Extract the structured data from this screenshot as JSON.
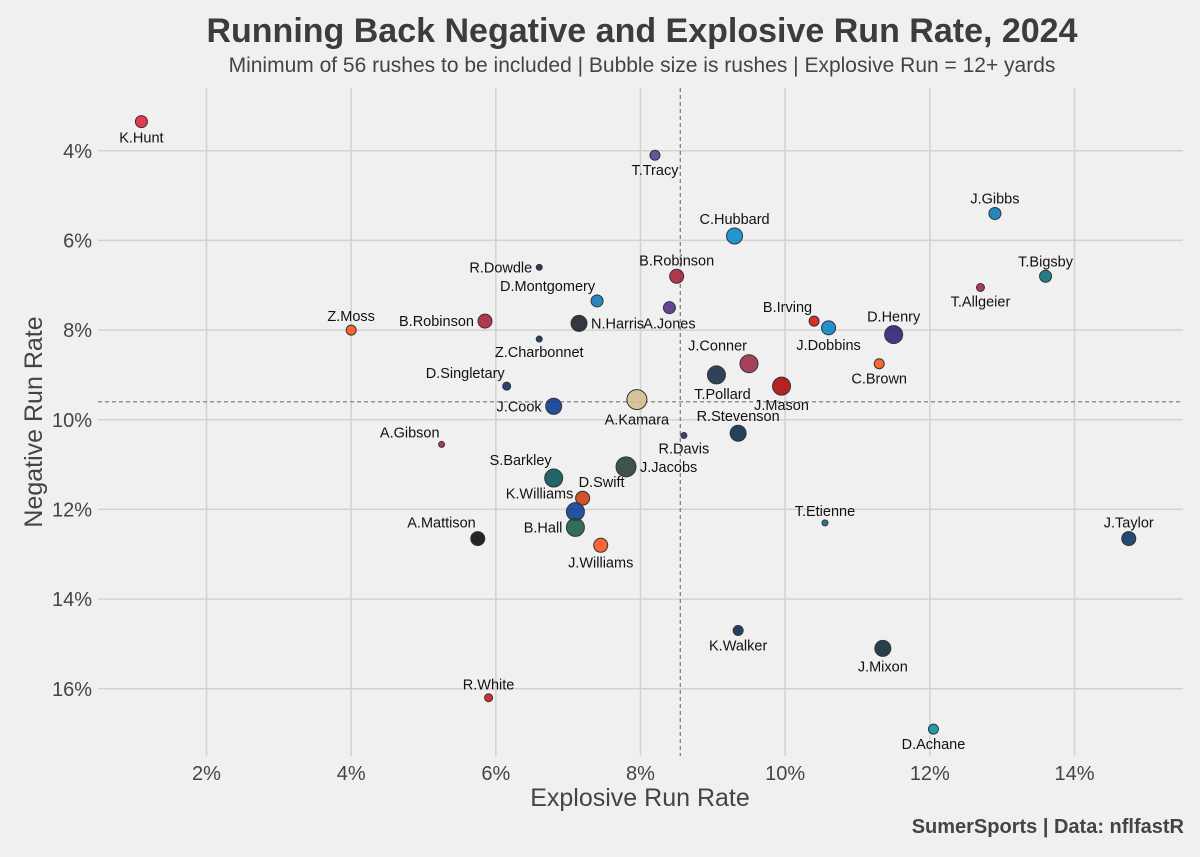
{
  "header": {
    "title": "Running Back Negative and Explosive Run Rate, 2024",
    "subtitle": "Minimum of 56 rushes to be included | Bubble size is rushes | Explosive Run = 12+ yards"
  },
  "footer": {
    "credit": "SumerSports | Data: nflfastR"
  },
  "chart_data": {
    "type": "scatter",
    "title": "Running Back Negative and Explosive Run Rate, 2024",
    "subtitle": "Minimum of 56 rushes to be included | Bubble size is rushes | Explosive Run = 12+ yards",
    "xlabel": "Explosive Run Rate",
    "ylabel": "Negative Run Rate",
    "xlim": [
      0.5,
      15.5
    ],
    "ylim": [
      17.5,
      2.6
    ],
    "y_inverted": true,
    "x_unit": "%",
    "y_unit": "%",
    "xticks": [
      2,
      4,
      6,
      8,
      10,
      12,
      14
    ],
    "yticks": [
      4,
      6,
      8,
      10,
      12,
      14,
      16
    ],
    "xtick_labels": [
      "2%",
      "4%",
      "6%",
      "8%",
      "10%",
      "12%",
      "14%"
    ],
    "ytick_labels": [
      "4%",
      "6%",
      "8%",
      "10%",
      "12%",
      "14%",
      "16%"
    ],
    "grid": true,
    "reference_lines": {
      "x": 8.55,
      "y": 9.6
    },
    "bubble_size": "rushes",
    "points": [
      {
        "name": "K.Hunt",
        "x": 1.1,
        "y": 3.35,
        "size": 4,
        "color": "#e31837",
        "lab": "below"
      },
      {
        "name": "T.Tracy",
        "x": 8.2,
        "y": 4.1,
        "size": 3,
        "color": "#4b3b8c",
        "lab": "below"
      },
      {
        "name": "J.Gibbs",
        "x": 12.9,
        "y": 5.4,
        "size": 4,
        "color": "#0076b6",
        "lab": "above"
      },
      {
        "name": "C.Hubbard",
        "x": 9.3,
        "y": 5.9,
        "size": 6,
        "color": "#0085ca",
        "lab": "above"
      },
      {
        "name": "R.Dowdle",
        "x": 6.6,
        "y": 6.6,
        "size": 1,
        "color": "#041e42",
        "lab": "left"
      },
      {
        "name": "B.Robinson",
        "x": 8.5,
        "y": 6.8,
        "size": 5,
        "color": "#a71930",
        "lab": "above"
      },
      {
        "name": "T.Bigsby",
        "x": 13.6,
        "y": 6.8,
        "size": 4,
        "color": "#006778",
        "lab": "above"
      },
      {
        "name": "T.Allgeier",
        "x": 12.7,
        "y": 7.05,
        "size": 2,
        "color": "#a71930",
        "lab": "below"
      },
      {
        "name": "D.Montgomery",
        "x": 7.4,
        "y": 7.35,
        "size": 4,
        "color": "#0076b6",
        "lab": "aboveleft"
      },
      {
        "name": "A.Jones",
        "x": 8.4,
        "y": 7.5,
        "size": 4,
        "color": "#4f2683",
        "lab": "below"
      },
      {
        "name": "Z.Moss",
        "x": 4.0,
        "y": 8.0,
        "size": 3,
        "color": "#fb4f14",
        "lab": "above"
      },
      {
        "name": "B.Robinson",
        "x": 5.85,
        "y": 7.8,
        "size": 5,
        "color": "#a71930",
        "lab": "left"
      },
      {
        "name": "N.Harris",
        "x": 7.15,
        "y": 7.85,
        "size": 6,
        "color": "#101820",
        "lab": "right"
      },
      {
        "name": "B.Irving",
        "x": 10.4,
        "y": 7.8,
        "size": 3,
        "color": "#d50a0a",
        "lab": "aboveleft"
      },
      {
        "name": "J.Dobbins",
        "x": 10.6,
        "y": 7.95,
        "size": 5,
        "color": "#0080c6",
        "lab": "below"
      },
      {
        "name": "D.Henry",
        "x": 11.5,
        "y": 8.1,
        "size": 7,
        "color": "#241773",
        "lab": "above"
      },
      {
        "name": "Z.Charbonnet",
        "x": 6.6,
        "y": 8.2,
        "size": 1,
        "color": "#002244",
        "lab": "below"
      },
      {
        "name": "J.Conner",
        "x": 9.5,
        "y": 8.75,
        "size": 7,
        "color": "#97233f",
        "lab": "aboveleft"
      },
      {
        "name": "C.Brown",
        "x": 11.3,
        "y": 8.75,
        "size": 3,
        "color": "#fb4f14",
        "lab": "below"
      },
      {
        "name": "T.Pollard",
        "x": 9.05,
        "y": 9.0,
        "size": 7,
        "color": "#0c2340",
        "lab": "belowleft"
      },
      {
        "name": "J.Mason",
        "x": 9.95,
        "y": 9.25,
        "size": 7,
        "color": "#aa0000",
        "lab": "below"
      },
      {
        "name": "D.Singletary",
        "x": 6.15,
        "y": 9.25,
        "size": 2,
        "color": "#0b2265",
        "lab": "aboveleft"
      },
      {
        "name": "A.Kamara",
        "x": 7.95,
        "y": 9.55,
        "size": 8,
        "color": "#d3bc8d",
        "lab": "below"
      },
      {
        "name": "J.Cook",
        "x": 6.8,
        "y": 9.7,
        "size": 6,
        "color": "#00338d",
        "lab": "left"
      },
      {
        "name": "R.Stevenson",
        "x": 9.35,
        "y": 10.3,
        "size": 6,
        "color": "#002244",
        "lab": "above"
      },
      {
        "name": "R.Davis",
        "x": 8.6,
        "y": 10.35,
        "size": 1,
        "color": "#241773",
        "lab": "below"
      },
      {
        "name": "A.Gibson",
        "x": 5.25,
        "y": 10.55,
        "size": 1,
        "color": "#a71930",
        "lab": "aboveleft"
      },
      {
        "name": "J.Jacobs",
        "x": 7.8,
        "y": 11.05,
        "size": 8,
        "color": "#203731",
        "lab": "right"
      },
      {
        "name": "S.Barkley",
        "x": 6.8,
        "y": 11.3,
        "size": 7,
        "color": "#004c54",
        "lab": "aboveleft"
      },
      {
        "name": "D.Swift",
        "x": 7.2,
        "y": 11.75,
        "size": 5,
        "color": "#c83803",
        "lab": "aboveright"
      },
      {
        "name": "K.Williams",
        "x": 7.1,
        "y": 12.05,
        "size": 7,
        "color": "#003594",
        "lab": "aboveleft"
      },
      {
        "name": "T.Etienne",
        "x": 10.55,
        "y": 12.3,
        "size": 1,
        "color": "#006778",
        "lab": "above"
      },
      {
        "name": "B.Hall",
        "x": 7.1,
        "y": 12.4,
        "size": 7,
        "color": "#125740",
        "lab": "left"
      },
      {
        "name": "A.Mattison",
        "x": 5.75,
        "y": 12.65,
        "size": 5,
        "color": "#000000",
        "lab": "aboveleft"
      },
      {
        "name": "J.Taylor",
        "x": 14.75,
        "y": 12.65,
        "size": 5,
        "color": "#002c5f",
        "lab": "above"
      },
      {
        "name": "J.Williams",
        "x": 7.45,
        "y": 12.8,
        "size": 5,
        "color": "#fb4f14",
        "lab": "below"
      },
      {
        "name": "K.Walker",
        "x": 9.35,
        "y": 14.7,
        "size": 3,
        "color": "#002244",
        "lab": "below"
      },
      {
        "name": "J.Mixon",
        "x": 11.35,
        "y": 15.1,
        "size": 6,
        "color": "#03202f",
        "lab": "below"
      },
      {
        "name": "R.White",
        "x": 5.9,
        "y": 16.2,
        "size": 2,
        "color": "#d50a0a",
        "lab": "above"
      },
      {
        "name": "D.Achane",
        "x": 12.05,
        "y": 16.9,
        "size": 3,
        "color": "#008e97",
        "lab": "below"
      }
    ]
  }
}
